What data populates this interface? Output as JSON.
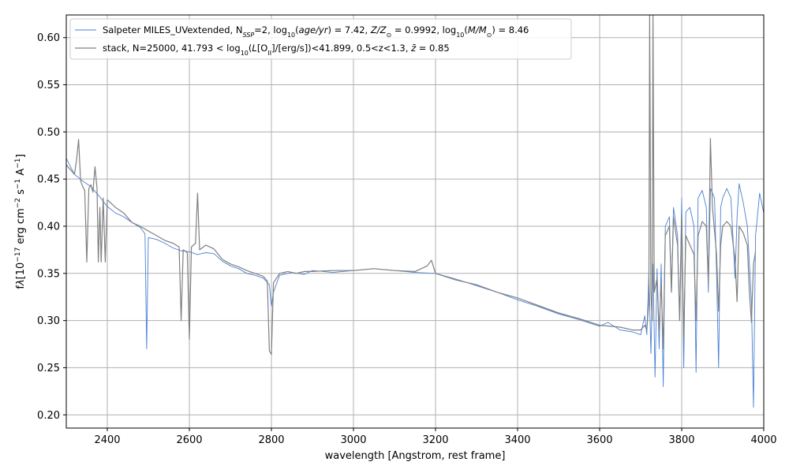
{
  "chart_data": {
    "type": "line",
    "xlabel": "wavelength [Angstrom, rest frame]",
    "ylabel_html": "f<tspan font-style=\"italic\">λ</tspan>[10<tspan baseline-shift=\"super\" font-size=\"9\">−17</tspan> erg cm<tspan baseline-shift=\"super\" font-size=\"9\">−2</tspan> s<tspan baseline-shift=\"super\" font-size=\"9\">−1</tspan> A<tspan baseline-shift=\"super\" font-size=\"9\">−1</tspan>]",
    "xlim": [
      2300,
      4000
    ],
    "ylim": [
      0.186,
      0.624
    ],
    "xticks": [
      2400,
      2600,
      2800,
      3000,
      3200,
      3400,
      3600,
      3800,
      4000
    ],
    "yticks": [
      0.2,
      0.25,
      0.3,
      0.35,
      0.4,
      0.45,
      0.5,
      0.55,
      0.6
    ],
    "ytick_labels": [
      "0.20",
      "0.25",
      "0.30",
      "0.35",
      "0.40",
      "0.45",
      "0.50",
      "0.55",
      "0.60"
    ],
    "grid": true,
    "legend_position": "top-left",
    "series": [
      {
        "name_html": "Salpeter MILES_UVextended, N<tspan baseline-shift=\"sub\" font-size=\"8\" font-style=\"italic\">SSP</tspan>=2, log<tspan baseline-shift=\"sub\" font-size=\"8\">10</tspan>(<tspan font-style=\"italic\">age/yr</tspan>) = 7.42, <tspan font-style=\"italic\">Z/Z</tspan><tspan baseline-shift=\"sub\" font-size=\"8\">⊙</tspan> = 0.9992, log<tspan baseline-shift=\"sub\" font-size=\"8\">10</tspan>(<tspan font-style=\"italic\">M/M</tspan><tspan baseline-shift=\"sub\" font-size=\"8\">⊙</tspan>) = 8.46",
        "color": "#4a7fd4",
        "points": [
          [
            2300,
            0.472
          ],
          [
            2320,
            0.455
          ],
          [
            2340,
            0.448
          ],
          [
            2360,
            0.442
          ],
          [
            2380,
            0.432
          ],
          [
            2400,
            0.421
          ],
          [
            2420,
            0.414
          ],
          [
            2440,
            0.41
          ],
          [
            2460,
            0.404
          ],
          [
            2480,
            0.399
          ],
          [
            2492,
            0.392
          ],
          [
            2496,
            0.27
          ],
          [
            2500,
            0.388
          ],
          [
            2520,
            0.386
          ],
          [
            2540,
            0.382
          ],
          [
            2560,
            0.377
          ],
          [
            2580,
            0.374
          ],
          [
            2600,
            0.373
          ],
          [
            2620,
            0.37
          ],
          [
            2640,
            0.372
          ],
          [
            2660,
            0.371
          ],
          [
            2680,
            0.363
          ],
          [
            2700,
            0.358
          ],
          [
            2720,
            0.355
          ],
          [
            2740,
            0.35
          ],
          [
            2760,
            0.348
          ],
          [
            2780,
            0.345
          ],
          [
            2795,
            0.338
          ],
          [
            2800,
            0.315
          ],
          [
            2805,
            0.33
          ],
          [
            2820,
            0.348
          ],
          [
            2850,
            0.351
          ],
          [
            2880,
            0.349
          ],
          [
            2900,
            0.353
          ],
          [
            2950,
            0.351
          ],
          [
            3000,
            0.353
          ],
          [
            3050,
            0.355
          ],
          [
            3100,
            0.353
          ],
          [
            3150,
            0.351
          ],
          [
            3200,
            0.35
          ],
          [
            3250,
            0.344
          ],
          [
            3300,
            0.337
          ],
          [
            3350,
            0.33
          ],
          [
            3400,
            0.322
          ],
          [
            3450,
            0.315
          ],
          [
            3500,
            0.307
          ],
          [
            3550,
            0.301
          ],
          [
            3600,
            0.294
          ],
          [
            3620,
            0.298
          ],
          [
            3650,
            0.29
          ],
          [
            3680,
            0.288
          ],
          [
            3700,
            0.285
          ],
          [
            3710,
            0.305
          ],
          [
            3715,
            0.285
          ],
          [
            3720,
            0.35
          ],
          [
            3725,
            0.265
          ],
          [
            3730,
            0.36
          ],
          [
            3735,
            0.24
          ],
          [
            3740,
            0.355
          ],
          [
            3745,
            0.27
          ],
          [
            3750,
            0.36
          ],
          [
            3755,
            0.23
          ],
          [
            3760,
            0.4
          ],
          [
            3770,
            0.41
          ],
          [
            3775,
            0.33
          ],
          [
            3780,
            0.42
          ],
          [
            3790,
            0.39
          ],
          [
            3795,
            0.3
          ],
          [
            3800,
            0.43
          ],
          [
            3805,
            0.25
          ],
          [
            3810,
            0.415
          ],
          [
            3820,
            0.42
          ],
          [
            3830,
            0.4
          ],
          [
            3835,
            0.245
          ],
          [
            3840,
            0.43
          ],
          [
            3850,
            0.438
          ],
          [
            3860,
            0.42
          ],
          [
            3865,
            0.33
          ],
          [
            3870,
            0.44
          ],
          [
            3880,
            0.43
          ],
          [
            3885,
            0.35
          ],
          [
            3890,
            0.25
          ],
          [
            3895,
            0.42
          ],
          [
            3900,
            0.43
          ],
          [
            3910,
            0.44
          ],
          [
            3920,
            0.43
          ],
          [
            3930,
            0.345
          ],
          [
            3935,
            0.41
          ],
          [
            3940,
            0.445
          ],
          [
            3950,
            0.425
          ],
          [
            3960,
            0.4
          ],
          [
            3970,
            0.32
          ],
          [
            3975,
            0.208
          ],
          [
            3980,
            0.39
          ],
          [
            3990,
            0.435
          ],
          [
            4000,
            0.414
          ]
        ]
      },
      {
        "name_html": "stack, N=25000, 41.793 &lt; log<tspan baseline-shift=\"sub\" font-size=\"8\">10</tspan>(<tspan font-style=\"italic\">L</tspan>[O<tspan baseline-shift=\"sub\" font-size=\"8\">II</tspan>]/[erg/s])&lt;41.899, 0.5&lt;z&lt;1.3, <tspan font-style=\"italic\">z̄</tspan> = 0.85",
        "color": "#808080",
        "points": [
          [
            2300,
            0.465
          ],
          [
            2310,
            0.46
          ],
          [
            2320,
            0.455
          ],
          [
            2325,
            0.47
          ],
          [
            2330,
            0.492
          ],
          [
            2335,
            0.448
          ],
          [
            2340,
            0.442
          ],
          [
            2345,
            0.438
          ],
          [
            2350,
            0.362
          ],
          [
            2355,
            0.44
          ],
          [
            2360,
            0.444
          ],
          [
            2365,
            0.436
          ],
          [
            2370,
            0.463
          ],
          [
            2375,
            0.44
          ],
          [
            2378,
            0.362
          ],
          [
            2382,
            0.42
          ],
          [
            2385,
            0.362
          ],
          [
            2390,
            0.43
          ],
          [
            2395,
            0.362
          ],
          [
            2400,
            0.428
          ],
          [
            2420,
            0.42
          ],
          [
            2440,
            0.414
          ],
          [
            2460,
            0.404
          ],
          [
            2480,
            0.4
          ],
          [
            2500,
            0.395
          ],
          [
            2520,
            0.39
          ],
          [
            2540,
            0.385
          ],
          [
            2560,
            0.382
          ],
          [
            2575,
            0.378
          ],
          [
            2580,
            0.3
          ],
          [
            2585,
            0.375
          ],
          [
            2595,
            0.372
          ],
          [
            2600,
            0.28
          ],
          [
            2605,
            0.378
          ],
          [
            2615,
            0.382
          ],
          [
            2620,
            0.435
          ],
          [
            2625,
            0.375
          ],
          [
            2640,
            0.38
          ],
          [
            2660,
            0.376
          ],
          [
            2680,
            0.365
          ],
          [
            2700,
            0.36
          ],
          [
            2720,
            0.357
          ],
          [
            2740,
            0.353
          ],
          [
            2760,
            0.35
          ],
          [
            2780,
            0.347
          ],
          [
            2790,
            0.342
          ],
          [
            2795,
            0.268
          ],
          [
            2800,
            0.264
          ],
          [
            2805,
            0.34
          ],
          [
            2820,
            0.35
          ],
          [
            2840,
            0.352
          ],
          [
            2860,
            0.35
          ],
          [
            2880,
            0.352
          ],
          [
            2900,
            0.352
          ],
          [
            2950,
            0.353
          ],
          [
            3000,
            0.353
          ],
          [
            3050,
            0.355
          ],
          [
            3100,
            0.353
          ],
          [
            3150,
            0.352
          ],
          [
            3180,
            0.358
          ],
          [
            3190,
            0.364
          ],
          [
            3200,
            0.35
          ],
          [
            3250,
            0.343
          ],
          [
            3300,
            0.338
          ],
          [
            3350,
            0.33
          ],
          [
            3400,
            0.324
          ],
          [
            3450,
            0.316
          ],
          [
            3500,
            0.308
          ],
          [
            3550,
            0.302
          ],
          [
            3600,
            0.295
          ],
          [
            3650,
            0.293
          ],
          [
            3680,
            0.29
          ],
          [
            3700,
            0.29
          ],
          [
            3710,
            0.295
          ],
          [
            3715,
            0.29
          ],
          [
            3720,
            0.32
          ],
          [
            3722,
            0.624
          ],
          [
            3725,
            0.33
          ],
          [
            3728,
            0.3
          ],
          [
            3730,
            0.624
          ],
          [
            3733,
            0.33
          ],
          [
            3740,
            0.345
          ],
          [
            3745,
            0.29
          ],
          [
            3750,
            0.34
          ],
          [
            3755,
            0.27
          ],
          [
            3760,
            0.39
          ],
          [
            3770,
            0.4
          ],
          [
            3775,
            0.33
          ],
          [
            3780,
            0.41
          ],
          [
            3790,
            0.38
          ],
          [
            3795,
            0.3
          ],
          [
            3800,
            0.41
          ],
          [
            3805,
            0.28
          ],
          [
            3810,
            0.39
          ],
          [
            3820,
            0.38
          ],
          [
            3830,
            0.37
          ],
          [
            3835,
            0.3
          ],
          [
            3840,
            0.39
          ],
          [
            3850,
            0.405
          ],
          [
            3860,
            0.4
          ],
          [
            3865,
            0.34
          ],
          [
            3870,
            0.493
          ],
          [
            3875,
            0.42
          ],
          [
            3880,
            0.395
          ],
          [
            3885,
            0.37
          ],
          [
            3890,
            0.31
          ],
          [
            3895,
            0.38
          ],
          [
            3900,
            0.4
          ],
          [
            3910,
            0.405
          ],
          [
            3920,
            0.4
          ],
          [
            3930,
            0.365
          ],
          [
            3935,
            0.32
          ],
          [
            3940,
            0.4
          ],
          [
            3950,
            0.393
          ],
          [
            3960,
            0.38
          ],
          [
            3965,
            0.33
          ],
          [
            3970,
            0.298
          ],
          [
            3975,
            0.36
          ],
          [
            3980,
            0.373
          ]
        ]
      }
    ]
  }
}
